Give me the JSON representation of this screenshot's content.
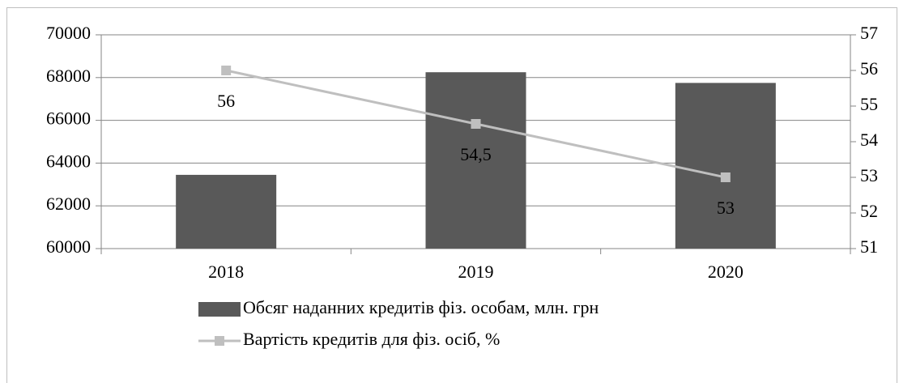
{
  "chart_data": {
    "type": "bar",
    "categories": [
      "2018",
      "2019",
      "2020"
    ],
    "series": [
      {
        "name": "Обсяг наданних кредитів фіз. особам, млн. грн",
        "color": "#595959",
        "type": "bar",
        "values": [
          63450,
          68250,
          67750
        ]
      },
      {
        "name": "Вартість кредитів для фіз. осіб, %",
        "color": "#bfbfbf",
        "type": "line",
        "axis": "y2",
        "values": [
          56,
          54.5,
          53
        ],
        "value_labels": [
          "56",
          "54,5",
          "53"
        ]
      }
    ],
    "ylim": [
      60000,
      70000
    ],
    "yticks": [
      60000,
      62000,
      64000,
      66000,
      68000,
      70000
    ],
    "y2lim": [
      51,
      57
    ],
    "y2ticks": [
      51,
      52,
      53,
      54,
      55,
      56,
      57
    ],
    "grid": true
  }
}
